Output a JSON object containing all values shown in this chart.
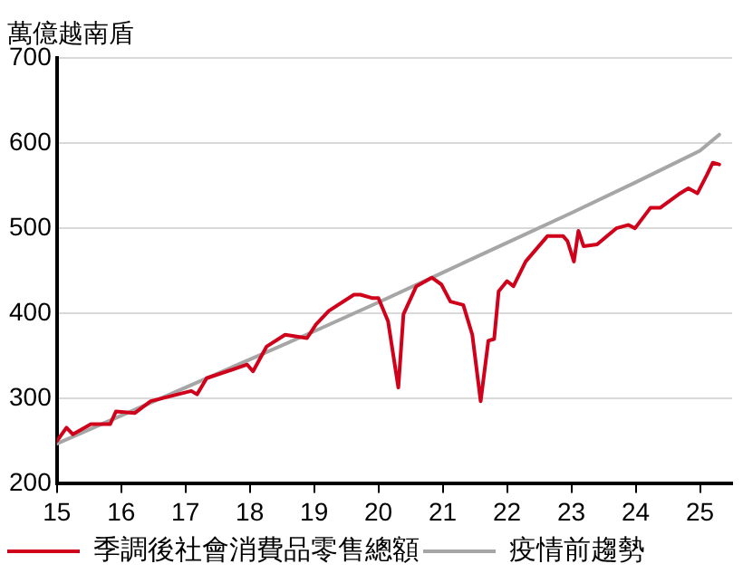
{
  "chart_data": {
    "type": "line",
    "ylabel": "萬億越南盾",
    "xlim": [
      15,
      25.5
    ],
    "xticks": [
      15,
      16,
      17,
      18,
      19,
      20,
      21,
      22,
      23,
      24,
      25
    ],
    "ylim": [
      200,
      700
    ],
    "yticks": [
      200,
      300,
      400,
      500,
      600,
      700
    ],
    "grid": "y",
    "legend": "bottom",
    "marker": "none",
    "line_style": "solid",
    "series": [
      {
        "name": "季調後社會消費品零售總額",
        "color": "#d0021b",
        "x": [
          15.0,
          15.15,
          15.25,
          15.53,
          15.83,
          15.92,
          16.21,
          16.46,
          17.09,
          17.18,
          17.33,
          17.96,
          18.05,
          18.26,
          18.55,
          18.89,
          19.03,
          19.23,
          19.62,
          19.72,
          19.91,
          20.0,
          20.15,
          20.31,
          20.39,
          20.59,
          20.83,
          20.98,
          21.12,
          21.32,
          21.46,
          21.59,
          21.71,
          21.8,
          21.87,
          22.0,
          22.1,
          22.29,
          22.63,
          22.87,
          22.94,
          23.04,
          23.11,
          23.19,
          23.4,
          23.7,
          23.89,
          23.99,
          24.23,
          24.38,
          24.67,
          24.82,
          24.96,
          25.11,
          25.2,
          25.3
        ],
        "values": [
          250,
          266,
          258,
          270,
          270,
          285,
          283,
          297,
          309,
          305,
          324,
          340,
          332,
          361,
          375,
          371,
          387,
          403,
          422,
          422,
          418,
          418,
          391,
          313,
          399,
          432,
          442,
          434,
          414,
          410,
          375,
          297,
          368,
          370,
          426,
          438,
          432,
          461,
          491,
          491,
          485,
          461,
          497,
          479,
          481,
          500,
          504,
          500,
          524,
          524,
          540,
          547,
          541,
          563,
          577,
          575
        ]
      },
      {
        "name": "疫情前趨勢",
        "color": "#a6a6a6",
        "x": [
          15,
          16,
          17,
          18,
          19,
          20,
          21,
          22,
          23,
          24,
          25,
          25.3
        ],
        "values": [
          247,
          280,
          313,
          346,
          379,
          413,
          448,
          483,
          518,
          554,
          591,
          610
        ]
      }
    ]
  }
}
